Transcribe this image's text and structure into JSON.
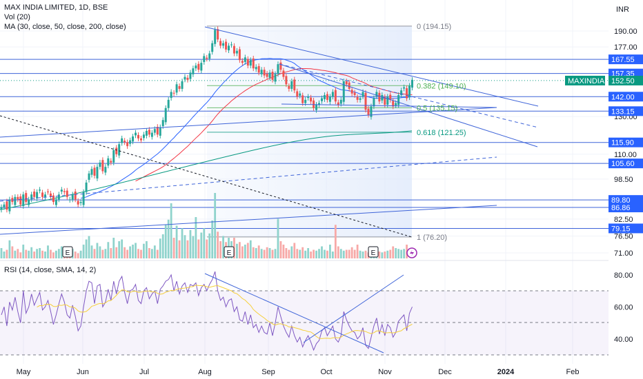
{
  "header": {
    "symbol_title": "MAX INDIA LIMITED, 1D, BSE",
    "vol_legend": "Vol (20)",
    "ma_legend": "MA (30, close, 50, close, 200, close)",
    "currency": "INR"
  },
  "rsi_header": "RSI (14, close, SMA, 14, 2)",
  "colors": {
    "up": "#26a69a",
    "down": "#ef5350",
    "accent": "#2962ff",
    "ma30": "#2962ff",
    "ma50": "#f23645",
    "ma200": "#089981",
    "rsi": "#7e57c2",
    "rsi_ma": "#f5cf3a",
    "grid": "#f0f3fa"
  },
  "chart_data": {
    "type": "candlestick",
    "y_axis_labels": [
      "190.00",
      "177.00",
      "130.00",
      "110.00",
      "98.50",
      "82.50",
      "76.50",
      "71.00"
    ],
    "rsi_axis_labels": [
      "80.00",
      "60.00",
      "40.00"
    ],
    "x_axis_labels": [
      "May",
      "Jun",
      "Jul",
      "Aug",
      "Sep",
      "Oct",
      "Nov",
      "Dec",
      "2024",
      "Feb"
    ],
    "price_levels": [
      {
        "label": "167.55",
        "value": 167.55
      },
      {
        "label": "157.35",
        "value": 157.35
      },
      {
        "label": "142.00",
        "value": 142.0
      },
      {
        "label": "133.15",
        "value": 133.15
      },
      {
        "label": "115.90",
        "value": 115.9
      },
      {
        "label": "105.60",
        "value": 105.6
      },
      {
        "label": "89.80",
        "value": 89.8
      },
      {
        "label": "86.86",
        "value": 86.86
      },
      {
        "label": "79.15",
        "value": 79.15
      }
    ],
    "last_price": {
      "ticker": "MAXINDIA",
      "value": 152.5,
      "label": "152.50"
    },
    "fibonacci": [
      {
        "label": "0 (194.15)",
        "value": 194.15
      },
      {
        "label": "0.382 (149.10)",
        "value": 149.1
      },
      {
        "label": "0.5 (135.15)",
        "value": 135.15
      },
      {
        "label": "0.618 (121.25)",
        "value": 121.25
      },
      {
        "label": "1 (76.20)",
        "value": 76.2
      }
    ],
    "earnings_marker": "E",
    "candles_close": [
      87,
      88,
      86,
      90,
      89,
      91,
      90,
      88,
      92,
      89,
      90,
      92,
      91,
      93,
      94,
      91,
      92,
      93,
      91,
      89,
      90,
      92,
      94,
      93,
      91,
      90,
      92,
      90,
      88,
      89,
      93,
      97,
      101,
      103,
      100,
      104,
      106,
      102,
      104,
      108,
      106,
      112,
      110,
      115,
      118,
      116,
      114,
      117,
      119,
      121,
      118,
      117,
      120,
      122,
      120,
      121,
      123,
      120,
      124,
      128,
      135,
      140,
      145,
      144,
      150,
      147,
      152,
      155,
      153,
      158,
      161,
      163,
      160,
      165,
      170,
      168,
      172,
      180,
      191,
      183,
      178,
      180,
      175,
      178,
      179,
      172,
      174,
      167,
      165,
      169,
      163,
      167,
      161,
      162,
      158,
      160,
      156,
      155,
      158,
      153,
      157,
      164,
      160,
      155,
      150,
      147,
      152,
      146,
      142,
      144,
      138,
      140,
      142,
      139,
      135,
      137,
      138,
      141,
      143,
      140,
      142,
      145,
      139,
      137,
      140,
      152,
      150,
      147,
      144,
      143,
      140,
      141,
      145,
      134,
      131,
      136,
      141,
      145,
      139,
      143,
      137,
      142,
      140,
      136,
      138,
      143,
      146,
      148,
      141,
      149,
      153
    ],
    "volume": [
      1.2,
      0.8,
      1.0,
      2.1,
      1.4,
      0.9,
      1.1,
      0.7,
      1.6,
      1.0,
      0.9,
      1.3,
      0.8,
      1.1,
      1.2,
      0.9,
      0.8,
      1.5,
      1.0,
      0.7,
      0.9,
      1.1,
      1.4,
      0.8,
      0.7,
      0.9,
      1.1,
      0.8,
      0.6,
      0.9,
      1.6,
      2.2,
      2.6,
      1.5,
      1.1,
      1.8,
      1.4,
      1.0,
      1.1,
      1.9,
      1.2,
      2.4,
      1.3,
      2.0,
      2.2,
      1.3,
      1.0,
      1.4,
      1.6,
      1.8,
      1.1,
      1.0,
      1.7,
      2.0,
      1.2,
      1.1,
      1.5,
      1.0,
      2.3,
      2.8,
      3.9,
      4.5,
      6.4,
      2.4,
      3.8,
      2.1,
      3.5,
      2.7,
      2.1,
      3.3,
      2.6,
      4.8,
      2.2,
      3.0,
      3.5,
      2.2,
      2.9,
      4.4,
      7.6,
      3.1,
      2.0,
      2.6,
      1.9,
      2.4,
      2.0,
      2.4,
      1.7,
      1.9,
      1.4,
      1.6,
      1.8,
      2.1,
      1.3,
      1.2,
      1.5,
      1.1,
      1.0,
      1.3,
      1.2,
      1.0,
      1.1,
      4.6,
      2.0,
      1.6,
      1.2,
      1.0,
      1.4,
      1.8,
      1.1,
      1.0,
      1.3,
      0.9,
      1.2,
      0.8,
      1.0,
      0.9,
      1.1,
      1.4,
      1.0,
      0.9,
      1.6,
      0.8,
      3.9,
      1.4,
      1.1,
      0.9,
      1.0,
      1.0,
      1.3,
      1.0,
      1.6,
      0.9,
      0.8,
      0.9,
      0.7,
      1.0,
      0.8,
      0.9,
      0.8,
      0.7,
      0.8,
      0.9,
      1.0,
      1.4,
      1.2,
      1.1,
      1.0,
      1.1,
      1.6
    ],
    "rsi": [
      55,
      60,
      48,
      63,
      58,
      66,
      57,
      50,
      70,
      56,
      60,
      68,
      61,
      65,
      69,
      58,
      60,
      64,
      57,
      49,
      55,
      62,
      68,
      63,
      55,
      53,
      61,
      54,
      45,
      48,
      60,
      70,
      76,
      75,
      62,
      73,
      74,
      60,
      63,
      71,
      64,
      76,
      68,
      76,
      79,
      69,
      62,
      70,
      71,
      74,
      64,
      62,
      70,
      72,
      65,
      68,
      70,
      62,
      71,
      73,
      76,
      77,
      80,
      70,
      76,
      68,
      73,
      75,
      69,
      74,
      73,
      75,
      67,
      72,
      74,
      70,
      74,
      77,
      82,
      70,
      64,
      66,
      60,
      64,
      65,
      57,
      60,
      52,
      51,
      57,
      49,
      55,
      47,
      49,
      44,
      48,
      44,
      43,
      50,
      42,
      50,
      60,
      54,
      48,
      44,
      41,
      48,
      42,
      38,
      41,
      35,
      39,
      42,
      38,
      33,
      37,
      39,
      45,
      47,
      42,
      45,
      48,
      40,
      38,
      42,
      57,
      52,
      48,
      45,
      44,
      40,
      42,
      47,
      36,
      34,
      41,
      48,
      53,
      43,
      49,
      42,
      49,
      47,
      41,
      44,
      51,
      53,
      55,
      45,
      56,
      60
    ],
    "rsi_ma_start": 14
  }
}
